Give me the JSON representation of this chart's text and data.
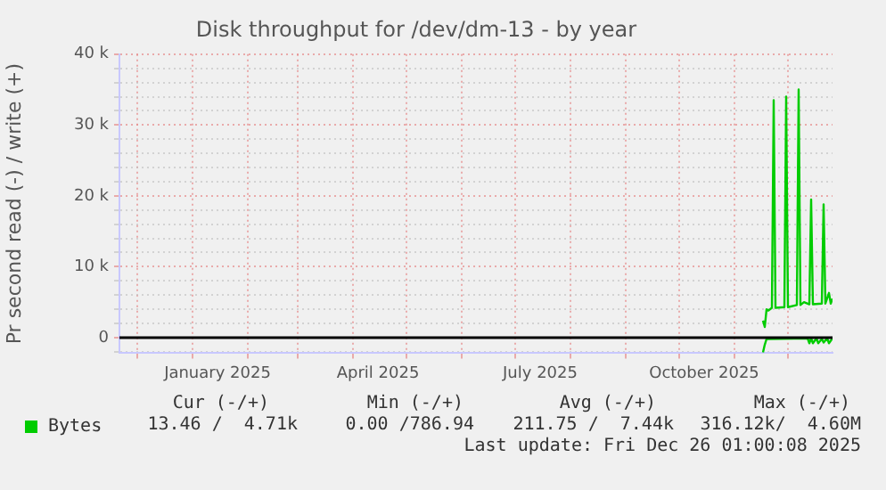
{
  "chart_data": {
    "type": "line",
    "title": "Disk throughput for /dev/dm-13 - by year",
    "ylabel": "Pr second read (-) / write (+)",
    "x": [
      "2025-11-17",
      "2025-11-18",
      "2025-11-19",
      "2025-11-20",
      "2025-11-22",
      "2025-11-23",
      "2025-11-24",
      "2025-11-29",
      "2025-11-30",
      "2025-12-01",
      "2025-12-06",
      "2025-12-07",
      "2025-12-08",
      "2025-12-10",
      "2025-12-13",
      "2025-12-14",
      "2025-12-15",
      "2025-12-20",
      "2025-12-21",
      "2025-12-22",
      "2025-12-24",
      "2025-12-25",
      "2025-12-26"
    ],
    "series": [
      {
        "name": "Bytes",
        "color": "#00cc00",
        "values": [
          2400,
          1500,
          4000,
          3800,
          4200,
          33500,
          4200,
          4300,
          34000,
          4300,
          4600,
          35000,
          4600,
          5000,
          4700,
          19500,
          4700,
          4800,
          18800,
          4800,
          6300,
          4800,
          5500
        ]
      },
      {
        "color": "#00cc00",
        "x": [
          "2025-11-17",
          "2025-11-18",
          "2025-11-19",
          "2025-12-12",
          "2025-12-13",
          "2025-12-14",
          "2025-12-15",
          "2025-12-17",
          "2025-12-18",
          "2025-12-20",
          "2025-12-21",
          "2025-12-23",
          "2025-12-24",
          "2025-12-26"
        ],
        "values": [
          -2100,
          -1000,
          -200,
          -100,
          -800,
          -100,
          -800,
          -100,
          -800,
          -200,
          -700,
          -100,
          -800,
          -100
        ]
      }
    ],
    "xlim": [
      "2024-11-21",
      "2025-12-26"
    ],
    "xticks": [
      {
        "value": "2024-12-01",
        "label": null
      },
      {
        "value": "2025-01-01",
        "label": null
      },
      {
        "value": "2025-01-15",
        "label": "January 2025"
      },
      {
        "value": "2025-02-01",
        "label": null
      },
      {
        "value": "2025-03-01",
        "label": null
      },
      {
        "value": "2025-04-01",
        "label": null
      },
      {
        "value": "2025-04-15",
        "label": "April 2025"
      },
      {
        "value": "2025-05-01",
        "label": null
      },
      {
        "value": "2025-06-01",
        "label": null
      },
      {
        "value": "2025-07-01",
        "label": null
      },
      {
        "value": "2025-07-15",
        "label": "July 2025"
      },
      {
        "value": "2025-08-01",
        "label": null
      },
      {
        "value": "2025-09-01",
        "label": null
      },
      {
        "value": "2025-10-01",
        "label": null
      },
      {
        "value": "2025-10-15",
        "label": "October 2025"
      },
      {
        "value": "2025-11-01",
        "label": null
      },
      {
        "value": "2025-12-01",
        "label": null
      }
    ],
    "ylim": [
      -2200,
      40000
    ],
    "yticks": [
      {
        "value": -2000,
        "label": null
      },
      {
        "value": 0,
        "label": "0"
      },
      {
        "value": 2000,
        "label": null
      },
      {
        "value": 4000,
        "label": null
      },
      {
        "value": 6000,
        "label": null
      },
      {
        "value": 8000,
        "label": null
      },
      {
        "value": 10000,
        "label": "10 k"
      },
      {
        "value": 12000,
        "label": null
      },
      {
        "value": 14000,
        "label": null
      },
      {
        "value": 16000,
        "label": null
      },
      {
        "value": 18000,
        "label": null
      },
      {
        "value": 20000,
        "label": "20 k"
      },
      {
        "value": 22000,
        "label": null
      },
      {
        "value": 24000,
        "label": null
      },
      {
        "value": 26000,
        "label": null
      },
      {
        "value": 28000,
        "label": null
      },
      {
        "value": 30000,
        "label": "30 k"
      },
      {
        "value": 32000,
        "label": null
      },
      {
        "value": 34000,
        "label": null
      },
      {
        "value": 36000,
        "label": null
      },
      {
        "value": 38000,
        "label": null
      },
      {
        "value": 40000,
        "label": "40 k"
      }
    ],
    "ref_lines": [
      {
        "axis": "y",
        "value": 0,
        "color": "#000000"
      }
    ],
    "grid": true,
    "legend": "bottom",
    "marker": "none",
    "line_style": "solid",
    "annotations": [
      "Cur (-/+)",
      "Min (-/+)",
      "Avg (-/+)",
      "Max (-/+)",
      "13.46 /  4.71k",
      "0.00 /786.94",
      "211.75 /  7.44k",
      "316.12k/  4.60M",
      "Last update: Fri Dec 26 01:00:08 2025"
    ]
  }
}
